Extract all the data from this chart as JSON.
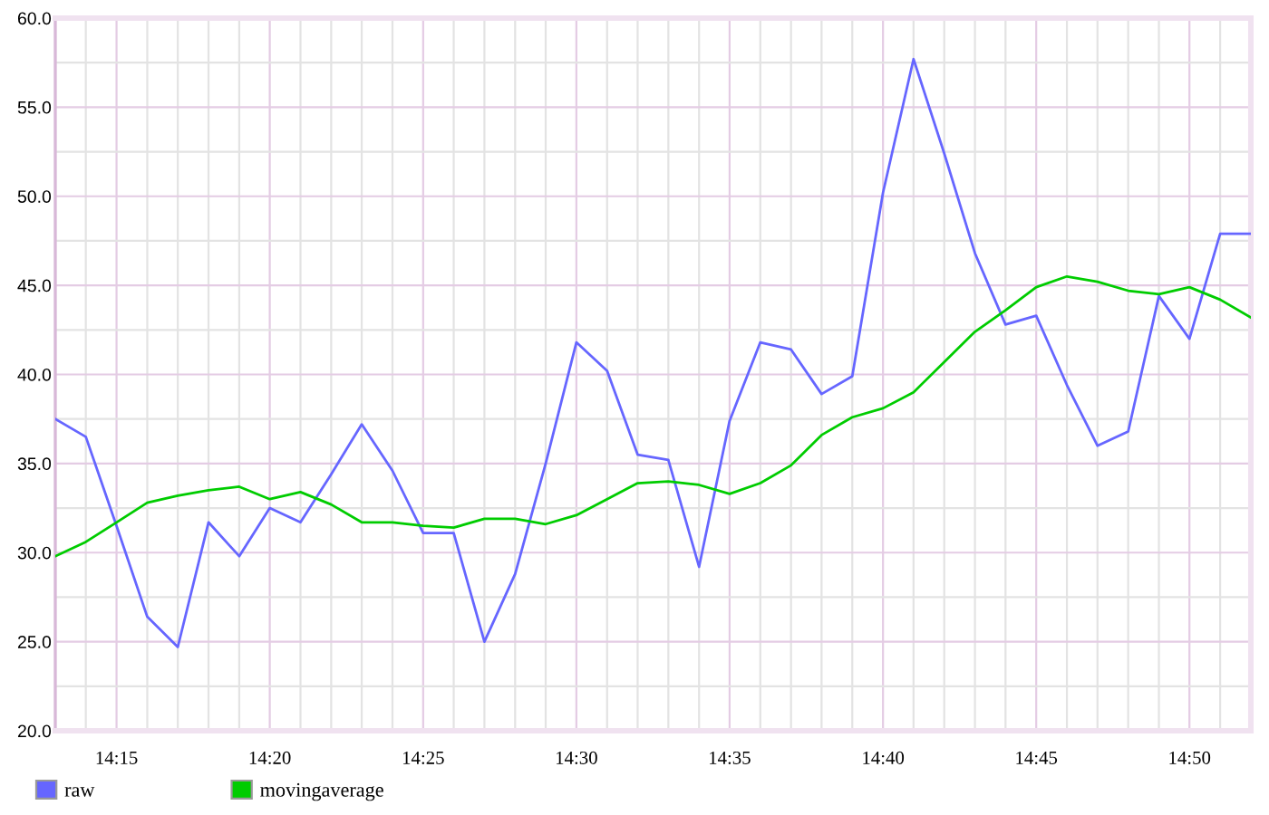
{
  "chart_data": {
    "type": "line",
    "legend": "bottom left",
    "grid": true,
    "x": [
      14.2167,
      14.2333,
      14.25,
      14.2667,
      14.2833,
      14.3,
      14.3167,
      14.3333,
      14.35,
      14.3667,
      14.3833,
      14.4,
      14.4167,
      14.4333,
      14.45,
      14.4667,
      14.4833,
      14.5,
      14.5167,
      14.5333,
      14.55,
      14.5667,
      14.5833,
      14.6,
      14.6167,
      14.6333,
      14.65,
      14.6667,
      14.6833,
      14.7,
      14.7167,
      14.7333,
      14.75,
      14.7667,
      14.7833,
      14.8,
      14.8167,
      14.8333,
      14.85,
      14.8667
    ],
    "series": [
      {
        "name": "raw",
        "color": "#6666ff",
        "values": [
          37.5,
          36.5,
          31.5,
          26.4,
          24.7,
          31.7,
          29.8,
          32.5,
          31.7,
          34.4,
          37.2,
          34.6,
          31.1,
          31.1,
          25.0,
          28.8,
          35.0,
          41.8,
          40.2,
          35.5,
          35.2,
          29.2,
          37.4,
          41.8,
          41.4,
          38.9,
          39.9,
          50.2,
          57.7,
          52.4,
          46.8,
          42.8,
          43.3,
          39.4,
          36.0,
          36.8,
          44.4,
          42.0,
          47.9,
          47.9
        ]
      },
      {
        "name": "movingaverage",
        "color": "#00cc00",
        "values": [
          29.8,
          30.6,
          31.7,
          32.8,
          33.2,
          33.5,
          33.7,
          33.0,
          33.4,
          32.7,
          31.7,
          31.7,
          31.5,
          31.4,
          31.9,
          31.9,
          31.6,
          32.1,
          33.0,
          33.9,
          34.0,
          33.8,
          33.3,
          33.9,
          34.9,
          36.6,
          37.6,
          38.1,
          39.0,
          40.7,
          42.4,
          43.6,
          44.9,
          45.5,
          45.2,
          44.7,
          44.5,
          44.9,
          44.2,
          43.2
        ]
      }
    ],
    "xlim": [
      14.2167,
      14.8667
    ],
    "xticks": [
      {
        "value": 14.2333,
        "label": null
      },
      {
        "value": 14.25,
        "label": "14:15"
      },
      {
        "value": 14.2667,
        "label": null
      },
      {
        "value": 14.2833,
        "label": null
      },
      {
        "value": 14.3,
        "label": null
      },
      {
        "value": 14.3167,
        "label": null
      },
      {
        "value": 14.3333,
        "label": "14:20"
      },
      {
        "value": 14.35,
        "label": null
      },
      {
        "value": 14.3667,
        "label": null
      },
      {
        "value": 14.3833,
        "label": null
      },
      {
        "value": 14.4,
        "label": null
      },
      {
        "value": 14.4167,
        "label": "14:25"
      },
      {
        "value": 14.4333,
        "label": null
      },
      {
        "value": 14.45,
        "label": null
      },
      {
        "value": 14.4667,
        "label": null
      },
      {
        "value": 14.4833,
        "label": null
      },
      {
        "value": 14.5,
        "label": "14:30"
      },
      {
        "value": 14.5167,
        "label": null
      },
      {
        "value": 14.5333,
        "label": null
      },
      {
        "value": 14.55,
        "label": null
      },
      {
        "value": 14.5667,
        "label": null
      },
      {
        "value": 14.5833,
        "label": "14:35"
      },
      {
        "value": 14.6,
        "label": null
      },
      {
        "value": 14.6167,
        "label": null
      },
      {
        "value": 14.6333,
        "label": null
      },
      {
        "value": 14.65,
        "label": null
      },
      {
        "value": 14.6667,
        "label": "14:40"
      },
      {
        "value": 14.6833,
        "label": null
      },
      {
        "value": 14.7,
        "label": null
      },
      {
        "value": 14.7167,
        "label": null
      },
      {
        "value": 14.7333,
        "label": null
      },
      {
        "value": 14.75,
        "label": "14:45"
      },
      {
        "value": 14.7667,
        "label": null
      },
      {
        "value": 14.7833,
        "label": null
      },
      {
        "value": 14.8,
        "label": null
      },
      {
        "value": 14.8167,
        "label": null
      },
      {
        "value": 14.8333,
        "label": "14:50"
      },
      {
        "value": 14.85,
        "label": null
      }
    ],
    "ylim": [
      20,
      60
    ],
    "yticks": [
      {
        "value": 20,
        "label": "20.0"
      },
      {
        "value": 22.5,
        "label": null
      },
      {
        "value": 25,
        "label": "25.0"
      },
      {
        "value": 27.5,
        "label": null
      },
      {
        "value": 30,
        "label": "30.0"
      },
      {
        "value": 32.5,
        "label": null
      },
      {
        "value": 35,
        "label": "35.0"
      },
      {
        "value": 37.5,
        "label": null
      },
      {
        "value": 40,
        "label": "40.0"
      },
      {
        "value": 42.5,
        "label": null
      },
      {
        "value": 45,
        "label": "45.0"
      },
      {
        "value": 47.5,
        "label": null
      },
      {
        "value": 50,
        "label": "50.0"
      },
      {
        "value": 52.5,
        "label": null
      },
      {
        "value": 55,
        "label": "55.0"
      },
      {
        "value": 57.5,
        "label": null
      },
      {
        "value": 60,
        "label": "60.0"
      }
    ]
  }
}
